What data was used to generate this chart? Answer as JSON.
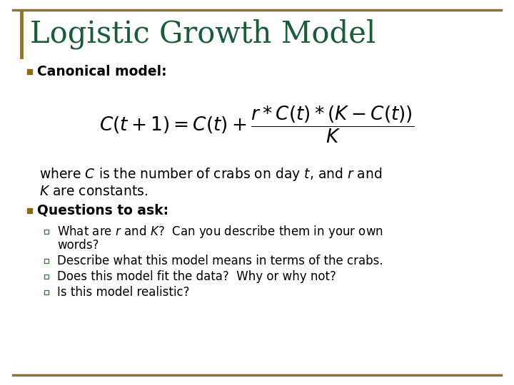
{
  "title": "Logistic Growth Model",
  "title_color": "#1a5c38",
  "title_fontsize": 30,
  "background_color": "#ffffff",
  "border_color": "#8B7536",
  "bullet1_text": "Canonical model:",
  "bullet2_text": "Questions to ask:",
  "where_line1": "where $C$ is the number of crabs on day $t$, and $r$ and",
  "where_line2": "$K$ are constants.",
  "subbullet1a": "What are $r$ and $K$?  Can you describe them in your own",
  "subbullet1b": "words?",
  "subbullet2": "Describe what this model means in terms of the crabs.",
  "subbullet3": "Does this model fit the data?  Why or why not?",
  "subbullet4": "Is this model realistic?",
  "bullet_color": "#8B6914",
  "sub_bullet_border_color": "#4a7a4a",
  "text_color": "#000000",
  "font_size_body": 13.5,
  "font_size_sub": 12.0,
  "font_size_formula": 19
}
